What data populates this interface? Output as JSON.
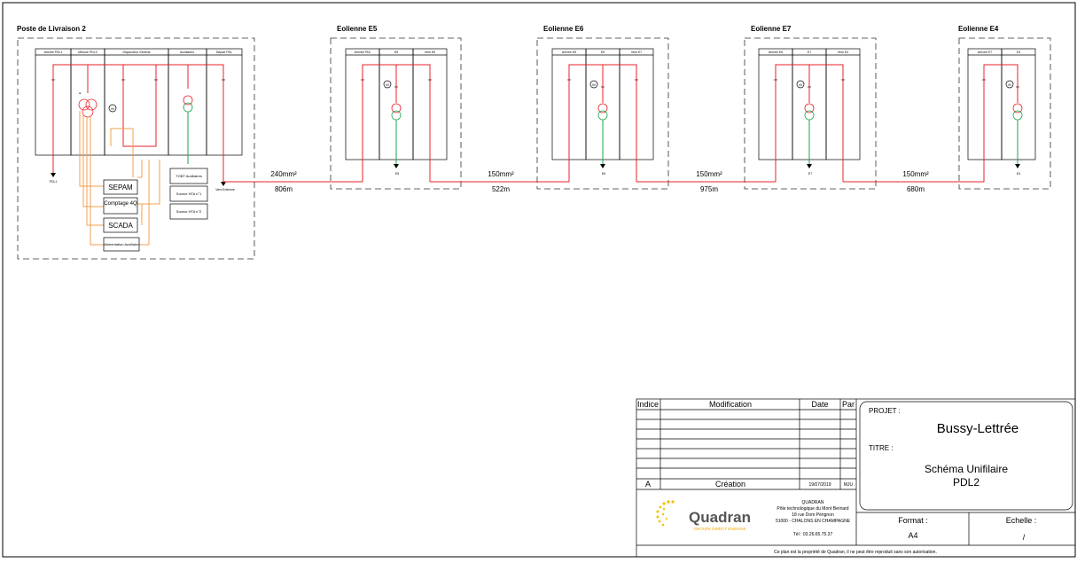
{
  "diagram": {
    "poste": {
      "title": "Poste de Livraison 2",
      "cells": [
        "Arrivée PDL1",
        "Mesure PDL2",
        "Disjoncteur Général",
        "Auxiliaires",
        "Départ PDL"
      ],
      "bottom_labels": {
        "left": "PDL1",
        "right": "Vers Eolienne"
      },
      "protection_boxes": [
        "SEPAM",
        "Comptage 4Q",
        "SCADA"
      ],
      "aux_boxes": [
        "TGBT Auxiliaires",
        "Source HTA n°1",
        "Source HTA n°2",
        "Alimentation Auxiliaire"
      ]
    },
    "eoliennes": [
      {
        "title": "Eolienne E5",
        "cells": [
          "Arrivée PDL",
          "E5",
          "Vers E6"
        ],
        "bottom": "E5"
      },
      {
        "title": "Eolienne E6",
        "cells": [
          "Arrivée E5",
          "E6",
          "Vers E7"
        ],
        "bottom": "E6"
      },
      {
        "title": "Eolienne E7",
        "cells": [
          "Arrivée E6",
          "E7",
          "Vers E4"
        ],
        "bottom": "E7"
      },
      {
        "title": "Eolienne E4",
        "cells": [
          "Arrivée E7",
          "E4"
        ],
        "bottom": "E4"
      }
    ],
    "cables": [
      {
        "section": "240mm²",
        "length": "806m"
      },
      {
        "section": "150mm²",
        "length": "522m"
      },
      {
        "section": "150mm²",
        "length": "975m"
      },
      {
        "section": "150mm²",
        "length": "680m"
      }
    ],
    "breaker_symbol": "M"
  },
  "title_block": {
    "headers": {
      "indice": "Indice",
      "modification": "Modification",
      "date": "Date",
      "par": "Par"
    },
    "revision": {
      "indice": "A",
      "modification": "Création",
      "date": "19/07/2019",
      "par": "MJU"
    },
    "projet_label": "PROJET :",
    "projet_value": "Bussy-Lettrée",
    "titre_label": "TITRE :",
    "titre_value_1": "Schéma Unifilaire",
    "titre_value_2": "PDL2",
    "company": {
      "logo_text": "Quadran",
      "logo_sub": "GROUPE DIRECT ENERGIE",
      "name": "QUADRAN",
      "line1": "Pôle technologique du Mont Bernard",
      "line2": "18 rue Dom Pérignon",
      "line3": "51000 - CHALONS EN CHAMPAGNE",
      "phone": "Tél : 03.26.65.75.37"
    },
    "format_label": "Format :",
    "format_value": "A4",
    "echelle_label": "Echelle :",
    "echelle_value": "/",
    "footer": "Ce plan est la propriété de Quadran, il ne peut être reproduit sans son autorisation."
  },
  "colors": {
    "red": "#e8202a",
    "green": "#1aa44a",
    "orange": "#f0a050",
    "blue": "#1a3aa0",
    "dash": "#333333"
  }
}
